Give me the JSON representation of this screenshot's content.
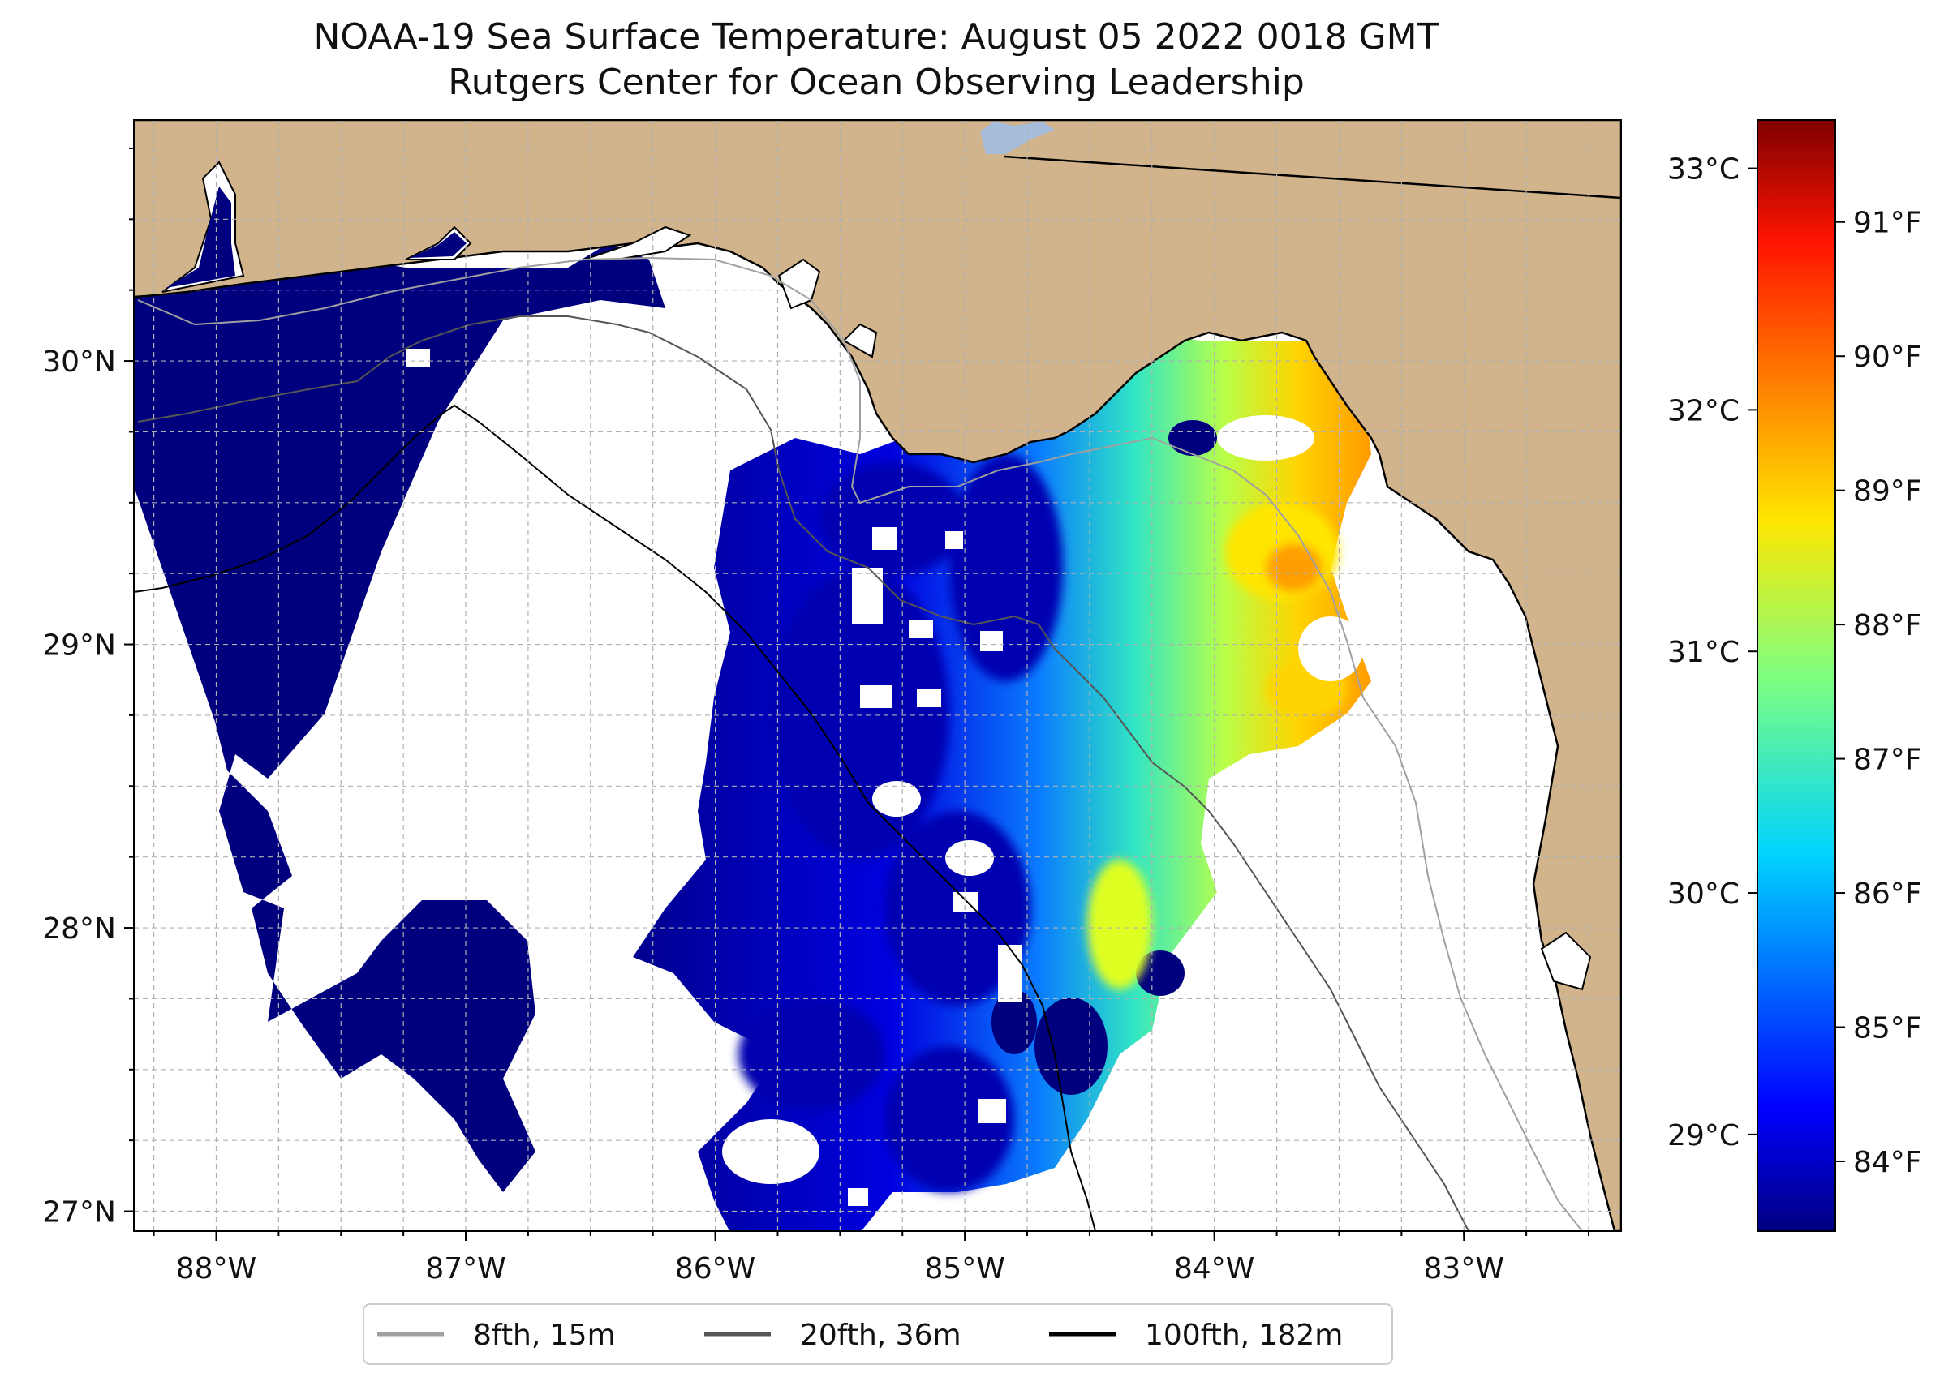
{
  "title_line1": "NOAA-19 Sea Surface Temperature: August 05 2022 0018 GMT",
  "title_line2": "Rutgers Center for Ocean Observing Leadership",
  "colors": {
    "land": "#d2b48c",
    "sea_cold": "#00007f",
    "sea_warm": "#ffd400",
    "no_data": "#ffffff",
    "inland_water": "#a6bddb",
    "grid": "#b0b0b0",
    "frame": "#000000"
  },
  "map": {
    "lon_min": -88.33,
    "lon_max": -82.37,
    "lat_min": 26.93,
    "lat_max": 30.85,
    "lon_ticks": [
      -88,
      -87,
      -86,
      -85,
      -84,
      -83
    ],
    "lon_tick_labels": [
      "88°W",
      "87°W",
      "86°W",
      "85°W",
      "84°W",
      "83°W"
    ],
    "lat_ticks": [
      27,
      28,
      29,
      30
    ],
    "lat_tick_labels": [
      "27°N",
      "28°N",
      "29°N",
      "30°N"
    ],
    "grid_step_deg": 0.25
  },
  "colorbar": {
    "celsius_ticks": [
      29,
      30,
      31,
      32,
      33
    ],
    "celsius_labels": [
      "29°C",
      "30°C",
      "31°C",
      "32°C",
      "33°C"
    ],
    "fahrenheit_ticks": [
      84,
      85,
      86,
      87,
      88,
      89,
      90,
      91
    ],
    "fahrenheit_labels": [
      "84°F",
      "85°F",
      "86°F",
      "87°F",
      "88°F",
      "89°F",
      "90°F",
      "91°F"
    ],
    "c_min": 28.6,
    "c_max": 33.2
  },
  "legend": [
    {
      "label": "8fth, 15m",
      "color": "#a0a0a0"
    },
    {
      "label": "20fth, 36m",
      "color": "#555555"
    },
    {
      "label": "100fth, 182m",
      "color": "#000000"
    }
  ]
}
